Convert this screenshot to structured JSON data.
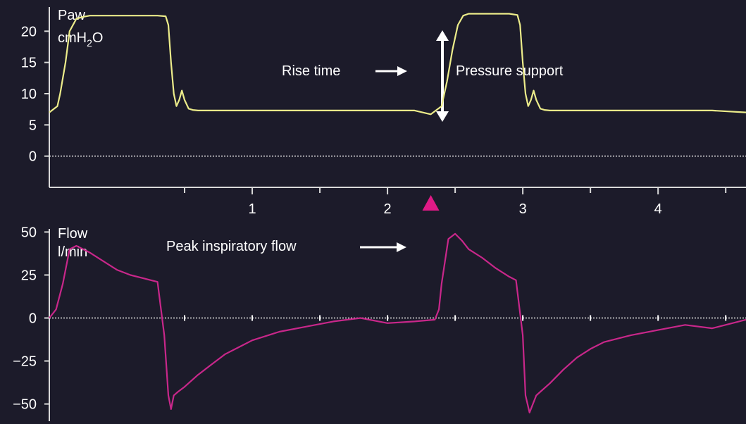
{
  "colors": {
    "background": "#1c1b2a",
    "axis": "#d9d9d9",
    "pressure_trace": "#ecec8a",
    "flow_trace": "#c8278a",
    "marker": "#e01a86",
    "annotation": "#ffffff"
  },
  "chart_data": [
    {
      "type": "line",
      "ylabel_line1": "Paw",
      "ylabel_line2_main": "cmH",
      "ylabel_line2_sub": "2",
      "ylabel_line2_end": "O",
      "xlim": [
        -0.5,
        4.65
      ],
      "ylim": [
        -5,
        25
      ],
      "yticks": [
        0,
        5,
        10,
        15,
        20
      ],
      "xticks": [
        1,
        2,
        3,
        4
      ],
      "xtick_minor": [
        0.5,
        1.5,
        2.5,
        3.5,
        4.5
      ],
      "zero_line": "dotted",
      "marker_x": 2.32,
      "series": [
        {
          "x": [
            -0.5,
            -0.44,
            -0.42,
            -0.38,
            -0.35,
            -0.3,
            -0.25,
            -0.2,
            -0.1,
            0.0,
            0.1,
            0.2,
            0.3,
            0.36,
            0.38,
            0.4,
            0.42,
            0.44,
            0.46,
            0.48,
            0.5,
            0.53,
            0.56,
            0.6,
            0.7,
            0.8,
            1.0,
            1.2,
            1.4,
            1.6,
            1.8,
            2.0,
            2.2,
            2.32,
            2.4,
            2.44,
            2.48,
            2.52,
            2.56,
            2.6,
            2.7,
            2.8,
            2.9,
            2.96,
            2.98,
            3.0,
            3.02,
            3.04,
            3.06,
            3.08,
            3.1,
            3.13,
            3.16,
            3.2,
            3.3,
            3.4,
            3.6,
            3.8,
            4.0,
            4.2,
            4.4,
            4.65
          ],
          "y": [
            7,
            8,
            10,
            15,
            20,
            22,
            22.3,
            22.5,
            22.5,
            22.5,
            22.5,
            22.5,
            22.5,
            22.4,
            21,
            15,
            10,
            8,
            9,
            10.5,
            9,
            7.6,
            7.4,
            7.3,
            7.3,
            7.3,
            7.3,
            7.3,
            7.3,
            7.3,
            7.3,
            7.3,
            7.3,
            6.7,
            8,
            12,
            17,
            21,
            22.5,
            22.8,
            22.8,
            22.8,
            22.8,
            22.6,
            21,
            15,
            10,
            8,
            9,
            10.5,
            9,
            7.6,
            7.4,
            7.3,
            7.3,
            7.3,
            7.3,
            7.3,
            7.3,
            7.3,
            7.3,
            7
          ]
        }
      ]
    },
    {
      "type": "line",
      "ylabel_line1": "Flow",
      "ylabel_line2": "l/min",
      "xlim": [
        -0.5,
        4.65
      ],
      "ylim": [
        -60,
        60
      ],
      "yticks": [
        -50,
        -25,
        0,
        25,
        50
      ],
      "zero_line": "dotted",
      "zero_ticks": [
        0.5,
        1.0,
        1.5,
        2.0,
        2.5,
        3.0,
        3.5,
        4.0,
        4.5
      ],
      "series": [
        {
          "x": [
            -0.5,
            -0.45,
            -0.4,
            -0.35,
            -0.3,
            -0.2,
            -0.1,
            0.0,
            0.1,
            0.2,
            0.25,
            0.3,
            0.35,
            0.38,
            0.4,
            0.42,
            0.45,
            0.5,
            0.6,
            0.7,
            0.8,
            0.9,
            1.0,
            1.2,
            1.4,
            1.6,
            1.8,
            2.0,
            2.2,
            2.35,
            2.38,
            2.4,
            2.45,
            2.5,
            2.55,
            2.6,
            2.7,
            2.8,
            2.9,
            2.95,
            3.0,
            3.02,
            3.05,
            3.1,
            3.2,
            3.3,
            3.4,
            3.5,
            3.6,
            3.8,
            4.0,
            4.2,
            4.4,
            4.65
          ],
          "y": [
            0,
            5,
            20,
            40,
            42,
            38,
            33,
            28,
            25,
            23,
            22,
            21,
            -10,
            -45,
            -53,
            -45,
            -43,
            -40,
            -33,
            -27,
            -21,
            -17,
            -13,
            -8,
            -5,
            -2,
            0,
            -3,
            -2,
            -1,
            5,
            20,
            46,
            49,
            45,
            40,
            35,
            29,
            24,
            22,
            -10,
            -45,
            -55,
            -45,
            -38,
            -30,
            -23,
            -18,
            -14,
            -10,
            -7,
            -4,
            -6,
            -1
          ]
        }
      ]
    }
  ],
  "annotations": {
    "rise_time": "Rise time",
    "pressure_support": "Pressure support",
    "peak_inspiratory_flow": "Peak inspiratory flow"
  }
}
